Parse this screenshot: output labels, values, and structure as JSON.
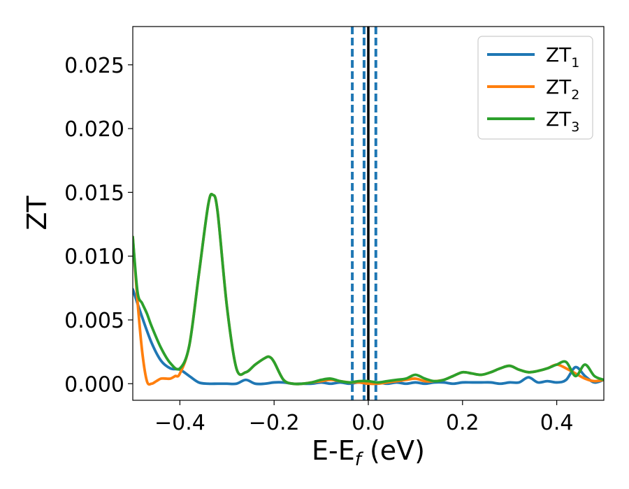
{
  "chart_data": {
    "type": "line",
    "xlabel": "E-E",
    "xlabel_sub": "f",
    "xlabel_unit": " (eV)",
    "ylabel": "ZT",
    "xlim": [
      -0.5,
      0.5
    ],
    "ylim": [
      -0.0013,
      0.028
    ],
    "xticks": [
      -0.4,
      -0.2,
      0.0,
      0.2,
      0.4
    ],
    "xtick_labels": [
      "−0.4",
      "−0.2",
      "0.0",
      "0.2",
      "0.4"
    ],
    "yticks": [
      0.0,
      0.005,
      0.01,
      0.015,
      0.02,
      0.025
    ],
    "ytick_labels": [
      "0.000",
      "0.005",
      "0.010",
      "0.015",
      "0.020",
      "0.025"
    ],
    "grid": false,
    "legend_position": "top-right",
    "vertical_lines": [
      {
        "x": -0.034,
        "style": "dashed",
        "color": "#1f77b4"
      },
      {
        "x": -0.009,
        "style": "dashed",
        "color": "#1f77b4"
      },
      {
        "x": 0.016,
        "style": "dashed",
        "color": "#1f77b4"
      },
      {
        "x": 0.0,
        "style": "solid",
        "color": "#000000"
      }
    ],
    "series": [
      {
        "name": "ZT",
        "sub": "1",
        "color": "#1f77b4",
        "x": [
          -0.5,
          -0.48,
          -0.46,
          -0.44,
          -0.42,
          -0.4,
          -0.38,
          -0.36,
          -0.34,
          -0.32,
          -0.3,
          -0.28,
          -0.26,
          -0.24,
          -0.22,
          -0.2,
          -0.18,
          -0.16,
          -0.14,
          -0.12,
          -0.1,
          -0.08,
          -0.06,
          -0.04,
          -0.02,
          0.0,
          0.02,
          0.04,
          0.06,
          0.08,
          0.1,
          0.12,
          0.14,
          0.16,
          0.18,
          0.2,
          0.22,
          0.24,
          0.26,
          0.28,
          0.3,
          0.32,
          0.34,
          0.36,
          0.38,
          0.4,
          0.42,
          0.44,
          0.46,
          0.48,
          0.5
        ],
        "y": [
          0.0074,
          0.0052,
          0.0032,
          0.0018,
          0.0012,
          0.0011,
          0.0006,
          0.0001,
          0.0,
          0.0,
          0.0,
          0.0,
          0.0003,
          0.0,
          0.0,
          0.0001,
          0.0001,
          0.0,
          0.0,
          0.0,
          0.0001,
          0.0,
          0.0001,
          0.0,
          0.0001,
          0.0,
          0.0001,
          0.0,
          0.0001,
          0.0,
          0.0001,
          0.0,
          0.0001,
          0.0001,
          0.0,
          0.0001,
          0.0001,
          0.0001,
          0.0001,
          0.0,
          0.0001,
          0.0001,
          0.0005,
          0.0001,
          0.0002,
          0.0001,
          0.0003,
          0.0013,
          0.0006,
          0.0001,
          0.0003
        ]
      },
      {
        "name": "ZT",
        "sub": "2",
        "color": "#ff7f0e",
        "x": [
          -0.5,
          -0.49,
          -0.48,
          -0.47,
          -0.46,
          -0.45,
          -0.44,
          -0.43,
          -0.42,
          -0.41,
          -0.4,
          -0.38,
          -0.36,
          -0.34,
          -0.33,
          -0.32,
          -0.3,
          -0.28,
          -0.26,
          -0.24,
          -0.22,
          -0.21,
          -0.2,
          -0.18,
          -0.16,
          -0.14,
          -0.12,
          -0.1,
          -0.08,
          -0.06,
          -0.04,
          -0.02,
          0.0,
          0.02,
          0.04,
          0.06,
          0.08,
          0.1,
          0.12,
          0.14,
          0.16,
          0.18,
          0.2,
          0.22,
          0.24,
          0.26,
          0.28,
          0.3,
          0.32,
          0.34,
          0.36,
          0.38,
          0.4,
          0.42,
          0.44,
          0.46,
          0.48,
          0.5
        ],
        "y": [
          0.0115,
          0.0065,
          0.0025,
          0.0002,
          0.0,
          0.0002,
          0.0004,
          0.0004,
          0.0004,
          0.0006,
          0.0008,
          0.003,
          0.0085,
          0.014,
          0.0148,
          0.0135,
          0.006,
          0.0012,
          0.0009,
          0.0015,
          0.002,
          0.0021,
          0.0017,
          0.0003,
          0.0,
          0.0,
          0.0001,
          0.0002,
          0.0003,
          0.0002,
          0.0001,
          0.0001,
          0.0,
          0.0,
          0.0001,
          0.0002,
          0.0003,
          0.0004,
          0.0002,
          0.0002,
          0.0003,
          0.0006,
          0.0009,
          0.0008,
          0.0007,
          0.0009,
          0.0012,
          0.0014,
          0.0011,
          0.0009,
          0.001,
          0.0012,
          0.0015,
          0.0012,
          0.0008,
          0.0004,
          0.0002,
          0.0003
        ]
      },
      {
        "name": "ZT",
        "sub": "3",
        "color": "#2ca02c",
        "x": [
          -0.5,
          -0.49,
          -0.48,
          -0.47,
          -0.46,
          -0.44,
          -0.42,
          -0.4,
          -0.38,
          -0.36,
          -0.34,
          -0.33,
          -0.32,
          -0.3,
          -0.28,
          -0.26,
          -0.24,
          -0.22,
          -0.21,
          -0.2,
          -0.18,
          -0.16,
          -0.14,
          -0.12,
          -0.1,
          -0.08,
          -0.06,
          -0.04,
          -0.02,
          0.0,
          0.02,
          0.04,
          0.06,
          0.08,
          0.1,
          0.12,
          0.14,
          0.16,
          0.18,
          0.2,
          0.22,
          0.24,
          0.26,
          0.28,
          0.3,
          0.32,
          0.34,
          0.36,
          0.38,
          0.4,
          0.42,
          0.44,
          0.46,
          0.48,
          0.5
        ],
        "y": [
          0.0115,
          0.0072,
          0.0063,
          0.0055,
          0.0045,
          0.0028,
          0.0016,
          0.0012,
          0.003,
          0.0085,
          0.014,
          0.0148,
          0.0135,
          0.006,
          0.0012,
          0.0009,
          0.0015,
          0.002,
          0.0021,
          0.0017,
          0.0003,
          0.0,
          0.0,
          0.0001,
          0.0003,
          0.0004,
          0.0002,
          0.0001,
          0.0002,
          0.0002,
          0.0001,
          0.0002,
          0.0003,
          0.0004,
          0.0007,
          0.0004,
          0.0002,
          0.0003,
          0.0006,
          0.0009,
          0.0008,
          0.0007,
          0.0009,
          0.0012,
          0.0014,
          0.0011,
          0.0009,
          0.001,
          0.0012,
          0.0015,
          0.0017,
          0.0006,
          0.0015,
          0.0006,
          0.0003
        ]
      }
    ]
  }
}
